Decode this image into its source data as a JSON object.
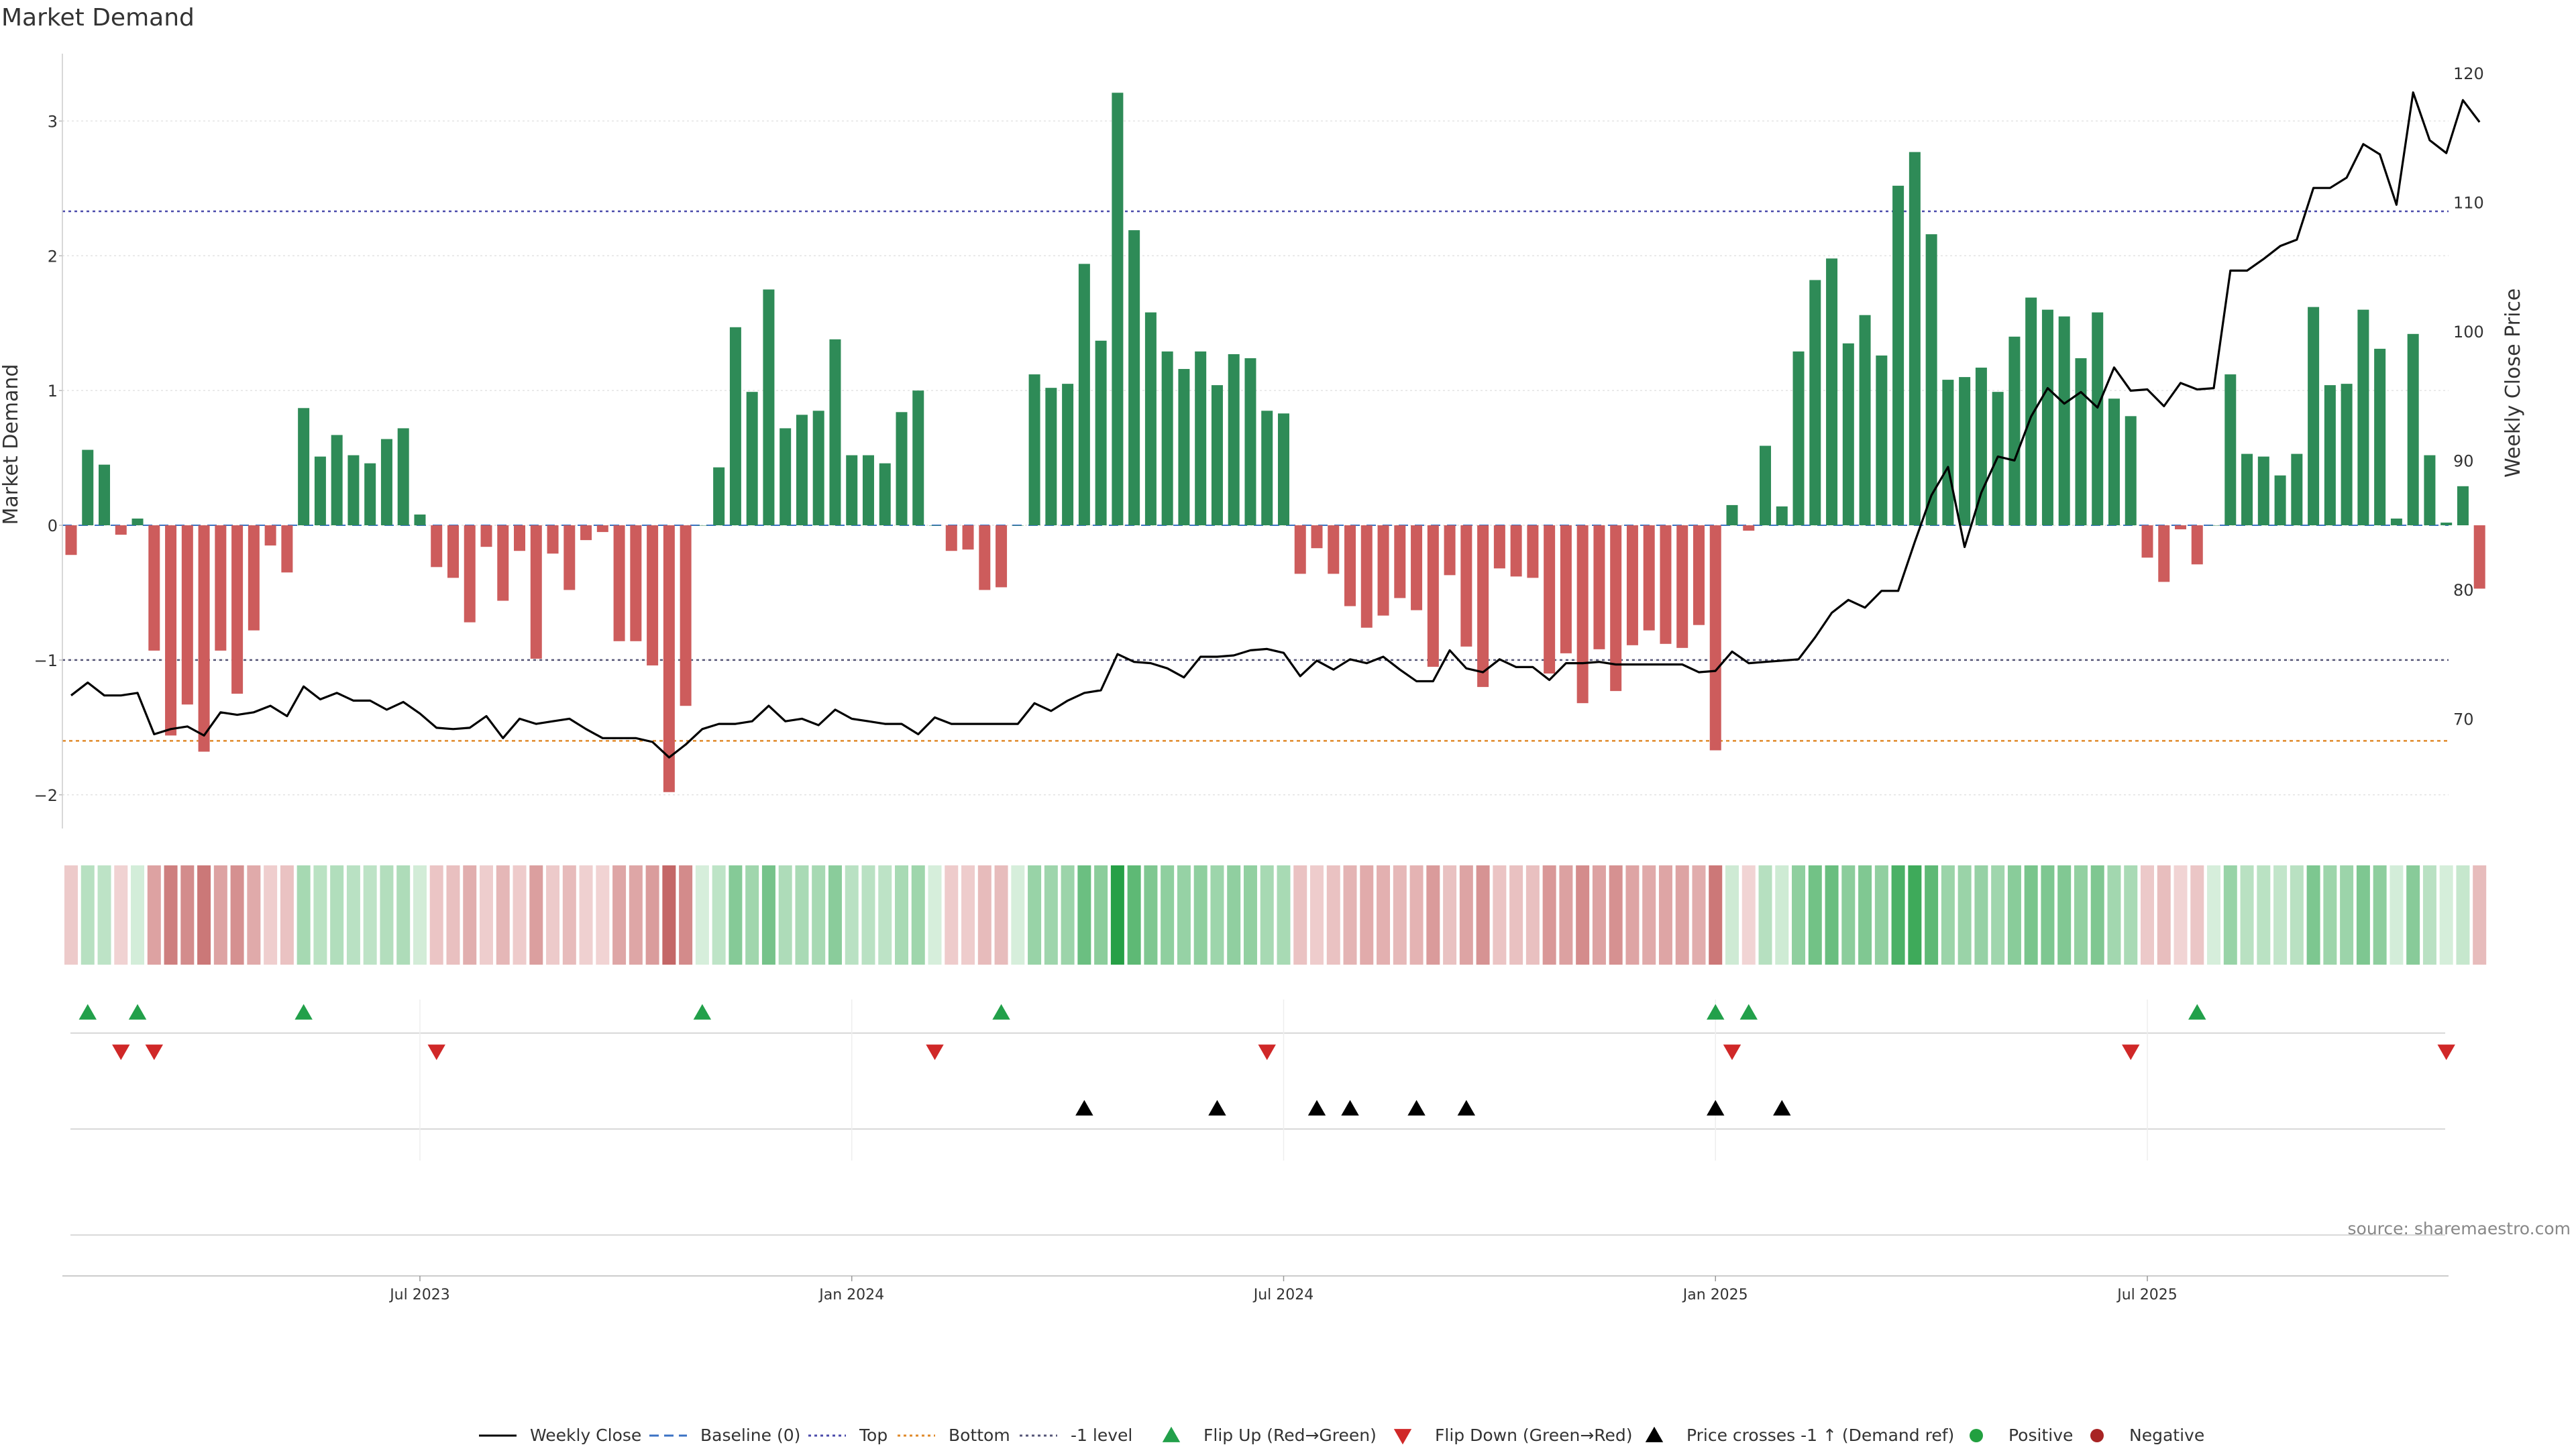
{
  "chart_data": {
    "type": "bar",
    "title": "Market Demand",
    "ylabel_left": "Market Demand",
    "ylabel_right": "Weekly Close Price",
    "y_left_range": [
      -2.25,
      3.5
    ],
    "y_left_ticks": [
      "−2",
      "−1",
      "0",
      "1",
      "2",
      "3"
    ],
    "y_right_range": [
      61.5,
      121.5
    ],
    "y_right_ticks": [
      "70",
      "80",
      "90",
      "100",
      "110",
      "120"
    ],
    "x_tick_labels": [
      "Jul 2023",
      "Jan 2024",
      "Jul 2024",
      "Jan 2025",
      "Jul 2025"
    ],
    "x_tick_index": [
      21,
      47,
      73,
      99,
      125
    ],
    "reference_lines": {
      "top": 2.33,
      "minus_one": -1.0,
      "bottom": -1.6,
      "baseline": 0
    },
    "demand": [
      -0.22,
      0.56,
      0.45,
      -0.07,
      0.05,
      -0.93,
      -1.56,
      -1.33,
      -1.68,
      -0.93,
      -1.25,
      -0.78,
      -0.15,
      -0.35,
      0.87,
      0.51,
      0.67,
      0.52,
      0.46,
      0.64,
      0.72,
      0.08,
      -0.31,
      -0.39,
      -0.72,
      -0.16,
      -0.56,
      -0.19,
      -0.99,
      -0.21,
      -0.48,
      -0.11,
      -0.05,
      -0.86,
      -0.86,
      -1.04,
      -1.98,
      -1.34,
      0.0,
      0.43,
      1.47,
      0.99,
      1.75,
      0.72,
      0.82,
      0.85,
      1.38,
      0.52,
      0.52,
      0.46,
      0.84,
      1.0,
      0.0,
      -0.19,
      -0.18,
      -0.48,
      -0.46,
      0.0,
      1.12,
      1.02,
      1.05,
      1.94,
      1.37,
      3.21,
      2.19,
      1.58,
      1.29,
      1.16,
      1.29,
      1.04,
      1.27,
      1.24,
      0.85,
      0.83,
      -0.36,
      -0.17,
      -0.36,
      -0.6,
      -0.76,
      -0.67,
      -0.54,
      -0.63,
      -1.05,
      -0.37,
      -0.9,
      -1.2,
      -0.32,
      -0.38,
      -0.39,
      -1.1,
      -0.95,
      -1.32,
      -0.92,
      -1.23,
      -0.89,
      -0.78,
      -0.88,
      -0.91,
      -0.74,
      -1.67,
      0.15,
      -0.04,
      0.59,
      0.14,
      1.29,
      1.82,
      1.98,
      1.35,
      1.56,
      1.26,
      2.52,
      2.77,
      2.16,
      1.08,
      1.1,
      1.17,
      0.99,
      1.4,
      1.69,
      1.6,
      1.55,
      1.24,
      1.58,
      0.94,
      0.81,
      -0.24,
      -0.42,
      -0.03,
      -0.29,
      0.0,
      1.12,
      0.53,
      0.51,
      0.37,
      0.53,
      1.62,
      1.04,
      1.05,
      1.6,
      1.31,
      0.05,
      1.42,
      0.52,
      0.02,
      0.29,
      -0.47
    ],
    "weekly_close": [
      71.8,
      72.8,
      71.8,
      71.8,
      72.0,
      68.8,
      69.2,
      69.4,
      68.7,
      70.5,
      70.3,
      70.5,
      71.0,
      70.2,
      72.5,
      71.5,
      72.0,
      71.4,
      71.4,
      70.7,
      71.3,
      70.4,
      69.3,
      69.2,
      69.3,
      70.2,
      68.5,
      70.0,
      69.6,
      69.8,
      70.0,
      69.2,
      68.5,
      68.5,
      68.5,
      68.2,
      67.0,
      68.0,
      69.2,
      69.6,
      69.6,
      69.8,
      71.0,
      69.8,
      70.0,
      69.5,
      70.7,
      70.0,
      69.8,
      69.6,
      69.6,
      68.8,
      70.1,
      69.6,
      69.6,
      69.6,
      69.6,
      69.6,
      71.2,
      70.6,
      71.4,
      72.0,
      72.2,
      75.0,
      74.4,
      74.3,
      73.9,
      73.2,
      74.8,
      74.8,
      74.9,
      75.3,
      75.4,
      75.1,
      73.3,
      74.5,
      73.8,
      74.6,
      74.3,
      74.8,
      73.8,
      72.9,
      72.9,
      75.3,
      73.9,
      73.6,
      74.6,
      74.0,
      74.0,
      73.0,
      74.3,
      74.3,
      74.4,
      74.2,
      74.2,
      74.2,
      74.2,
      74.2,
      73.6,
      73.7,
      75.2,
      74.3,
      74.4,
      74.5,
      74.6,
      76.3,
      78.2,
      79.2,
      78.6,
      79.9,
      79.9,
      83.7,
      87.3,
      89.5,
      83.3,
      87.5,
      90.3,
      90.0,
      93.4,
      95.6,
      94.4,
      95.3,
      94.1,
      97.2,
      95.4,
      95.5,
      94.2,
      96.0,
      95.5,
      95.6,
      104.7,
      104.7,
      105.6,
      106.6,
      107.1,
      111.1,
      111.1,
      111.9,
      114.5,
      113.7,
      109.8,
      118.5,
      114.8,
      113.8,
      117.9,
      116.2
    ],
    "flip_up_index": [
      1,
      4,
      14,
      38,
      56,
      99,
      101,
      128
    ],
    "flip_down_index": [
      3,
      5,
      22,
      52,
      72,
      100,
      124,
      143
    ],
    "price_cross_index": [
      61,
      69,
      75,
      77,
      81,
      84,
      99,
      103
    ],
    "legend": [
      {
        "label": "Weekly Close",
        "type": "line",
        "color": "#000000"
      },
      {
        "label": "Baseline (0)",
        "type": "dashed",
        "color": "#3b72c4"
      },
      {
        "label": "Top",
        "type": "dotted",
        "color": "#4a4aaa"
      },
      {
        "label": "Bottom",
        "type": "dotted",
        "color": "#e08a2a"
      },
      {
        "label": "-1 level",
        "type": "dotted",
        "color": "#555577"
      },
      {
        "label": "Flip Up (Red→Green)",
        "type": "tri-up",
        "color": "#22a04a"
      },
      {
        "label": "Flip Down (Green→Red)",
        "type": "tri-down",
        "color": "#d02828"
      },
      {
        "label": "Price crosses -1 ↑ (Demand ref)",
        "type": "tri-up",
        "color": "#000000"
      },
      {
        "label": "Positive",
        "type": "dot",
        "color": "#22a040"
      },
      {
        "label": "Negative",
        "type": "dot",
        "color": "#a82424"
      }
    ],
    "source": "source: sharemaestro.com"
  },
  "colors": {
    "positive_bar": "#2e8b57",
    "negative_bar": "#cd5c5c",
    "price_line": "#000000"
  }
}
